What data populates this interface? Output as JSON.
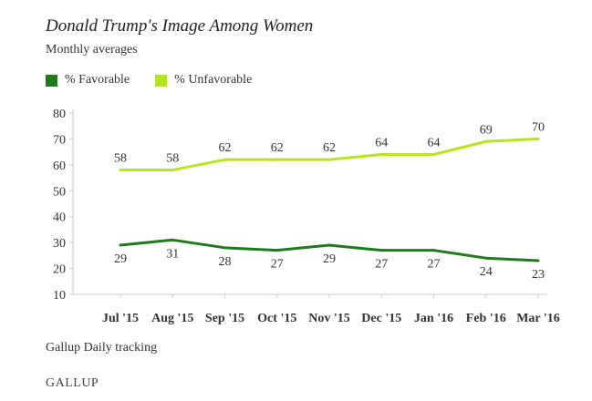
{
  "chart_data": {
    "type": "line",
    "title": "Donald Trump's Image Among Women",
    "subtitle": "Monthly averages",
    "categories": [
      "Jul '15",
      "Aug '15",
      "Sep '15",
      "Oct '15",
      "Nov '15",
      "Dec '15",
      "Jan '16",
      "Feb '16",
      "Mar '16"
    ],
    "series": [
      {
        "name": "% Favorable",
        "color": "#1f7a1f",
        "values": [
          29,
          31,
          28,
          27,
          29,
          27,
          27,
          24,
          23
        ],
        "label_position": "below"
      },
      {
        "name": "% Unfavorable",
        "color": "#b5e51d",
        "values": [
          58,
          58,
          62,
          62,
          62,
          64,
          64,
          69,
          70
        ],
        "label_position": "above"
      }
    ],
    "ylim": [
      10,
      80
    ],
    "yticks": [
      10,
      20,
      30,
      40,
      50,
      60,
      70,
      80
    ],
    "xlabel": "",
    "ylabel": "",
    "grid": false,
    "legend_position": "top-left"
  },
  "source": "Gallup Daily tracking",
  "brand": "GALLUP"
}
